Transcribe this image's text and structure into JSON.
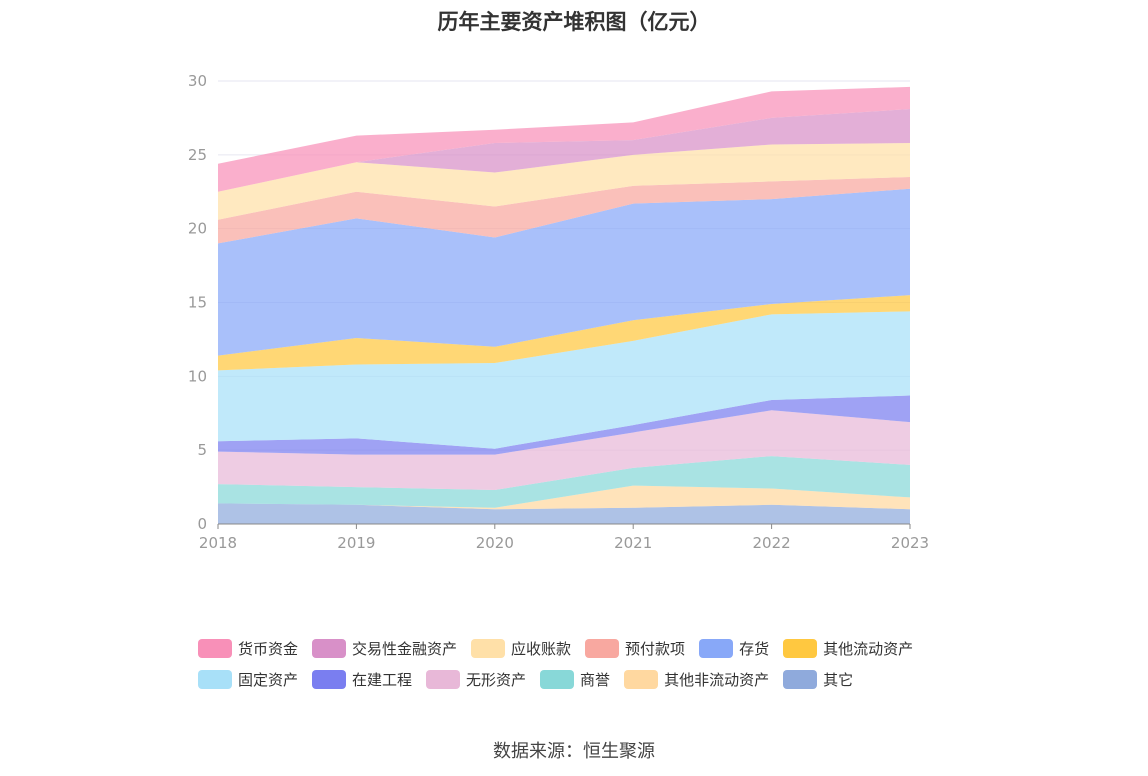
{
  "chart_data": {
    "type": "area",
    "stacked": true,
    "title": "历年主要资产堆积图（亿元）",
    "x": [
      "2018",
      "2019",
      "2020",
      "2021",
      "2022",
      "2023"
    ],
    "ylim": [
      0,
      30
    ],
    "yticks": [
      0,
      5,
      10,
      15,
      20,
      25,
      30
    ],
    "grid": true,
    "legend_position": "bottom",
    "series": [
      {
        "name": "其它",
        "color": "#8faadc",
        "values": [
          1.4,
          1.3,
          1.0,
          1.1,
          1.3,
          1.0
        ]
      },
      {
        "name": "其他非流动资产",
        "color": "#ffd8a0",
        "values": [
          0.0,
          0.0,
          0.1,
          1.5,
          1.1,
          0.8
        ]
      },
      {
        "name": "商誉",
        "color": "#88d8d8",
        "values": [
          1.3,
          1.2,
          1.2,
          1.2,
          2.2,
          2.2
        ]
      },
      {
        "name": "无形资产",
        "color": "#e8b8d8",
        "values": [
          2.2,
          2.2,
          2.4,
          2.4,
          3.1,
          2.9
        ]
      },
      {
        "name": "在建工程",
        "color": "#7a7ef0",
        "values": [
          0.7,
          1.1,
          0.4,
          0.5,
          0.7,
          1.8
        ]
      },
      {
        "name": "固定资产",
        "color": "#a8e0f8",
        "values": [
          4.8,
          5.0,
          5.8,
          5.7,
          5.8,
          5.7
        ]
      },
      {
        "name": "其他流动资产",
        "color": "#ffc840",
        "values": [
          1.0,
          1.8,
          1.1,
          1.4,
          0.7,
          1.1
        ]
      },
      {
        "name": "存货",
        "color": "#88a8f8",
        "values": [
          7.6,
          8.1,
          7.4,
          7.9,
          7.1,
          7.2
        ]
      },
      {
        "name": "预付款项",
        "color": "#f8a8a0",
        "values": [
          1.6,
          1.8,
          2.1,
          1.2,
          1.2,
          0.8
        ]
      },
      {
        "name": "应收账款",
        "color": "#ffe0a8",
        "values": [
          1.9,
          2.0,
          2.3,
          2.1,
          2.5,
          2.3
        ]
      },
      {
        "name": "交易性金融资产",
        "color": "#d890c8",
        "values": [
          0.0,
          0.0,
          2.0,
          1.0,
          1.8,
          2.3
        ]
      },
      {
        "name": "货币资金",
        "color": "#f890b8",
        "values": [
          1.9,
          1.8,
          0.9,
          1.2,
          1.8,
          1.5
        ]
      }
    ]
  },
  "legend": {
    "row1": [
      {
        "label": "货币资金",
        "color": "#f890b8"
      },
      {
        "label": "交易性金融资产",
        "color": "#d890c8"
      },
      {
        "label": "应收账款",
        "color": "#ffe0a8"
      },
      {
        "label": "预付款项",
        "color": "#f8a8a0"
      },
      {
        "label": "存货",
        "color": "#88a8f8"
      },
      {
        "label": "其他流动资产",
        "color": "#ffc840"
      }
    ],
    "row2": [
      {
        "label": "固定资产",
        "color": "#a8e0f8"
      },
      {
        "label": "在建工程",
        "color": "#7a7ef0"
      },
      {
        "label": "无形资产",
        "color": "#e8b8d8"
      },
      {
        "label": "商誉",
        "color": "#88d8d8"
      },
      {
        "label": "其他非流动资产",
        "color": "#ffd8a0"
      },
      {
        "label": "其它",
        "color": "#8faadc"
      }
    ]
  },
  "source": "数据来源：恒生聚源"
}
